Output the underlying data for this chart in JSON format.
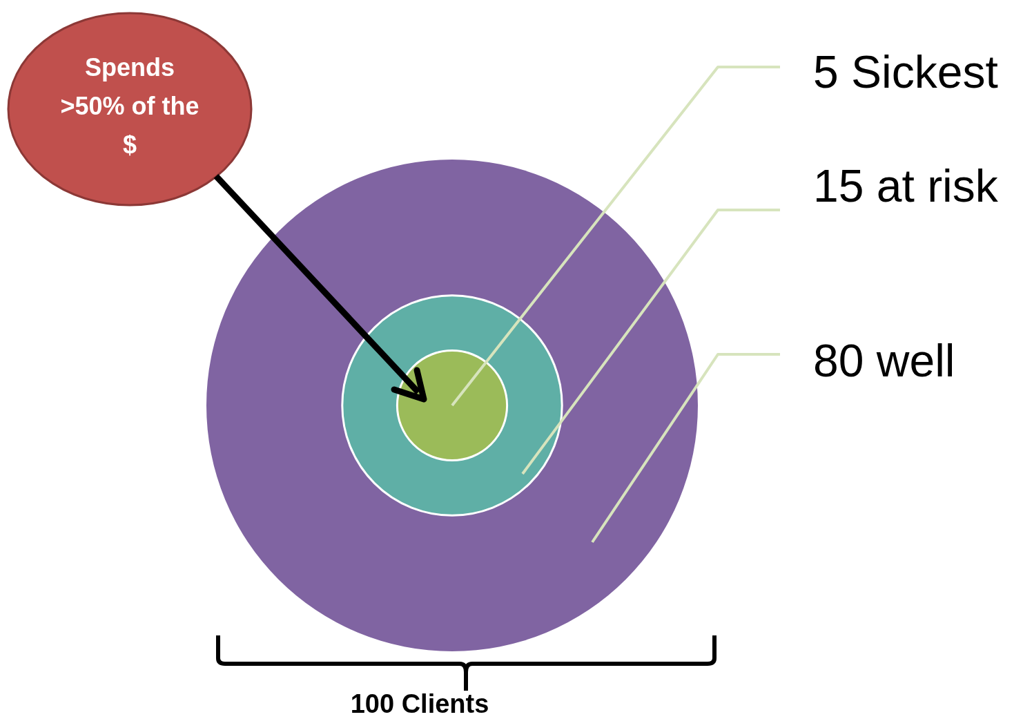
{
  "chart_data": {
    "type": "other",
    "categories": [
      "Sickest",
      "at risk",
      "well"
    ],
    "values": [
      5,
      15,
      80
    ],
    "value_labels": [
      "5",
      "15",
      "80"
    ],
    "colors": [
      "#9bbb59",
      "#5fafa6",
      "#8064a2"
    ],
    "annotations": [
      "Spends >50% of the $",
      "100 Clients"
    ]
  }
}
